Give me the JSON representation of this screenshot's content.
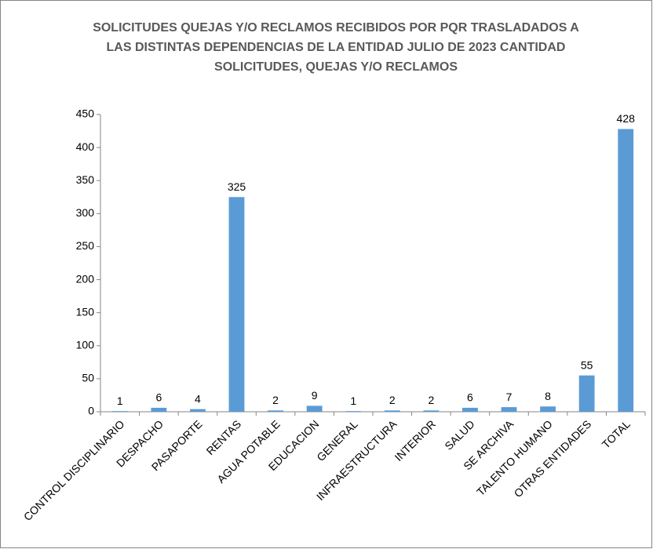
{
  "chart_data": {
    "type": "bar",
    "title": [
      "SOLICITUDES QUEJAS Y/O RECLAMOS RECIBIDOS POR PQR TRASLADADOS A",
      "LAS DISTINTAS DEPENDENCIAS DE LA ENTIDAD JULIO DE 2023 CANTIDAD",
      "SOLICITUDES, QUEJAS Y/O RECLAMOS"
    ],
    "categories": [
      "CONTROL DISCIPLINARIO",
      "DESPACHO",
      "PASAPORTE",
      "RENTAS",
      "AGUA POTABLE",
      "EDUCACION",
      "GENERAL",
      "INFRAESTRUCTURA",
      "INTERIOR",
      "SALUD",
      "SE ARCHIVA",
      "TALENTO HUMANO",
      "OTRAS ENTIDADES",
      "TOTAL"
    ],
    "values": [
      1,
      6,
      4,
      325,
      2,
      9,
      1,
      2,
      2,
      6,
      7,
      8,
      55,
      428
    ],
    "color": "#5b9bd5",
    "ylim": [
      0,
      450
    ],
    "yticks": [
      0,
      50,
      100,
      150,
      200,
      250,
      300,
      350,
      400,
      450
    ],
    "grid": false
  }
}
